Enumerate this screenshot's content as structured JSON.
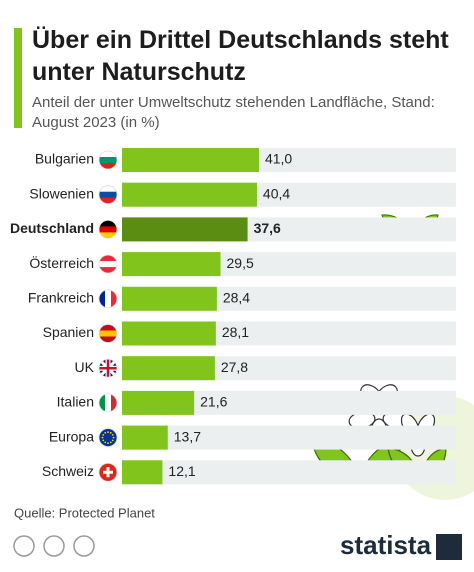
{
  "chart_data": {
    "type": "bar",
    "orientation": "horizontal",
    "title": "Über ein Drittel Deutschlands steht unter Naturschutz",
    "subtitle": "Anteil der unter Umweltschutz stehenden Landfläche, Stand: August 2023 (in %)",
    "categories": [
      "Bulgarien",
      "Slowenien",
      "Deutschland",
      "Österreich",
      "Frankreich",
      "Spanien",
      "UK",
      "Italien",
      "Europa",
      "Schweiz"
    ],
    "values": [
      41.0,
      40.4,
      37.6,
      29.5,
      28.4,
      28.1,
      27.8,
      21.6,
      13.7,
      12.1
    ],
    "value_labels": [
      "41,0",
      "40,4",
      "37,6",
      "29,5",
      "28,4",
      "28,1",
      "27,8",
      "21,6",
      "13,7",
      "12,1"
    ],
    "color": "#80c41c",
    "highlight": "Deutschland",
    "highlight_color": "#5b8d12",
    "xlim": [
      0,
      100
    ],
    "source": "Quelle: Protected Planet",
    "brand": "statista"
  }
}
